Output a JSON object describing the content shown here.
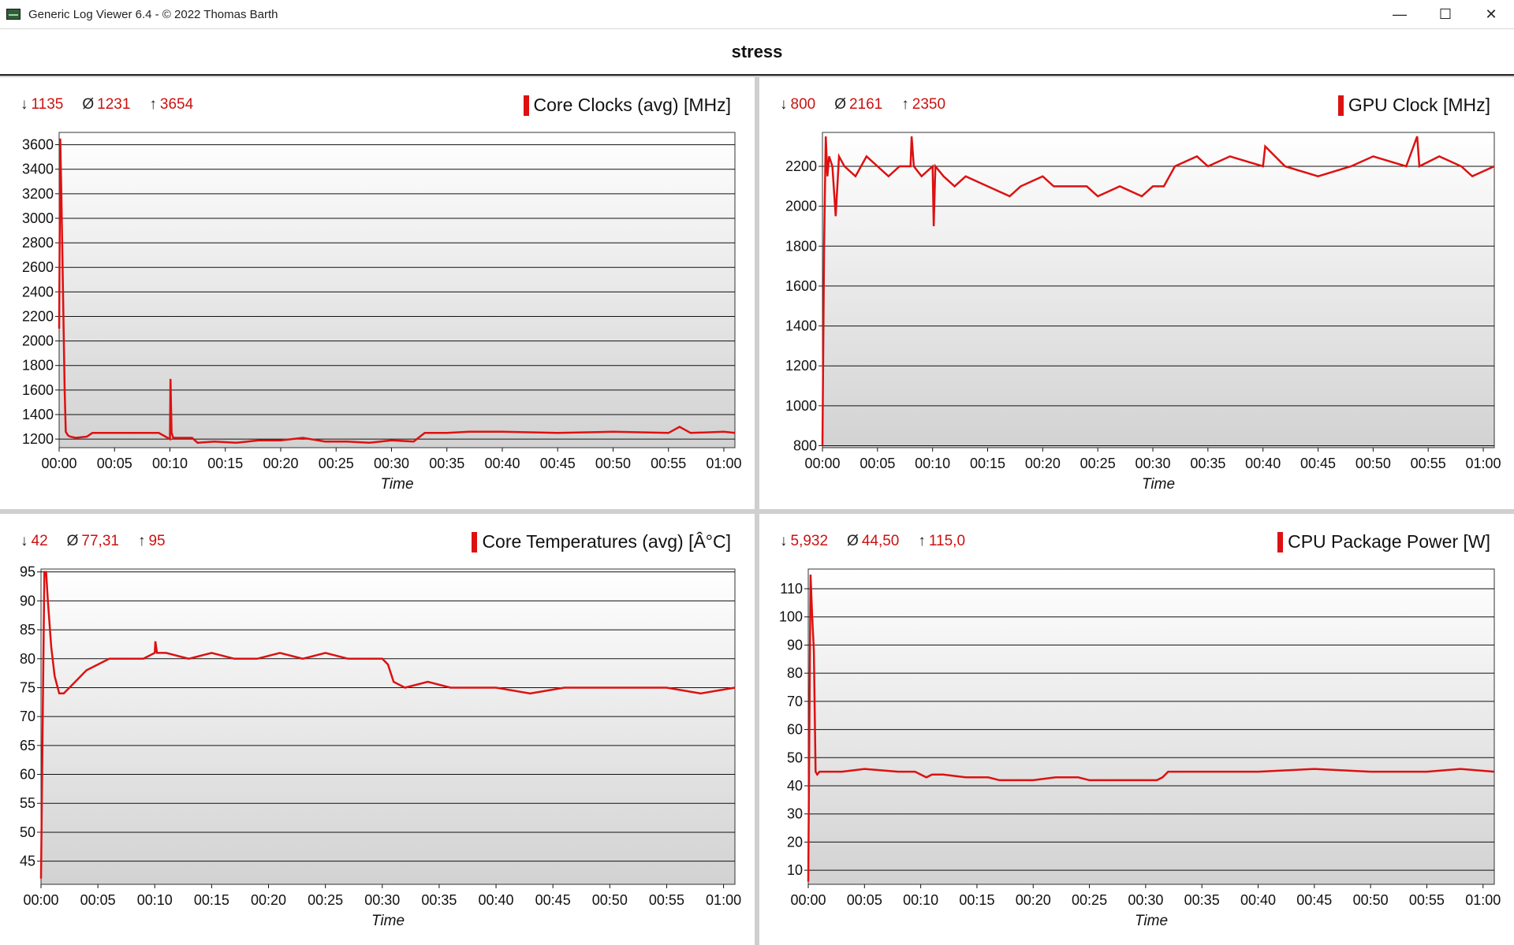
{
  "window": {
    "title": "Generic Log Viewer 6.4 - © 2022 Thomas Barth",
    "minimize": "—",
    "maximize": "☐",
    "close": "✕"
  },
  "document": {
    "title": "stress"
  },
  "colors": {
    "series": "#dd1111",
    "stat_text": "#cc1111",
    "grid": "#111111"
  },
  "chart_data": [
    {
      "type": "line",
      "title": "Core Clocks (avg) [MHz]",
      "stats": {
        "min_symbol": "↓",
        "min": "1135",
        "avg_symbol": "Ø",
        "avg": "1231",
        "max_symbol": "↑",
        "max": "3654"
      },
      "xlabel": "Time",
      "x_ticks": [
        "00:00",
        "00:05",
        "00:10",
        "00:15",
        "00:20",
        "00:25",
        "00:30",
        "00:35",
        "00:40",
        "00:45",
        "00:50",
        "00:55",
        "01:00"
      ],
      "xlim_min": [
        0,
        61
      ],
      "y_ticks": [
        1200,
        1400,
        1600,
        1800,
        2000,
        2200,
        2400,
        2600,
        2800,
        3000,
        3200,
        3400,
        3600
      ],
      "ylim": [
        1130,
        3700
      ],
      "grid": true,
      "series": [
        {
          "x": [
            0,
            0.1,
            0.2,
            0.35,
            0.5,
            0.6,
            0.8,
            1,
            1.5,
            2.5,
            3,
            5,
            7,
            9,
            10,
            10.05,
            10.15,
            10.3,
            12,
            12.5,
            14,
            16,
            18,
            20,
            22,
            24,
            26,
            28,
            30,
            32,
            33,
            35,
            37,
            40,
            45,
            50,
            55,
            56,
            57,
            60,
            61
          ],
          "y": [
            2100,
            3650,
            3200,
            2400,
            1600,
            1260,
            1230,
            1220,
            1210,
            1220,
            1250,
            1250,
            1250,
            1250,
            1200,
            1690,
            1250,
            1210,
            1210,
            1170,
            1180,
            1170,
            1190,
            1190,
            1210,
            1180,
            1180,
            1170,
            1190,
            1180,
            1250,
            1250,
            1260,
            1260,
            1250,
            1260,
            1250,
            1300,
            1250,
            1260,
            1250
          ]
        }
      ]
    },
    {
      "type": "line",
      "title": "GPU Clock [MHz]",
      "stats": {
        "min_symbol": "↓",
        "min": "800",
        "avg_symbol": "Ø",
        "avg": "2161",
        "max_symbol": "↑",
        "max": "2350"
      },
      "xlabel": "Time",
      "x_ticks": [
        "00:00",
        "00:05",
        "00:10",
        "00:15",
        "00:20",
        "00:25",
        "00:30",
        "00:35",
        "00:40",
        "00:45",
        "00:50",
        "00:55",
        "01:00"
      ],
      "xlim_min": [
        0,
        61
      ],
      "y_ticks": [
        800,
        1000,
        1200,
        1400,
        1600,
        1800,
        2000,
        2200
      ],
      "ylim": [
        790,
        2370
      ],
      "grid": true,
      "series": [
        {
          "x": [
            0,
            0.15,
            0.3,
            0.45,
            0.6,
            0.9,
            1.2,
            1.5,
            2,
            3,
            4,
            5,
            6,
            7,
            8,
            8.1,
            8.3,
            9,
            10,
            10.1,
            10.25,
            11,
            12,
            13,
            15,
            17,
            18,
            20,
            21,
            24,
            25,
            27,
            29,
            30,
            31,
            31.5,
            32,
            34,
            35,
            37,
            40,
            40.2,
            42,
            45,
            48,
            50,
            53,
            54,
            54.2,
            56,
            58,
            59,
            61
          ],
          "y": [
            800,
            1800,
            2350,
            2150,
            2250,
            2200,
            1950,
            2250,
            2200,
            2150,
            2250,
            2200,
            2150,
            2200,
            2200,
            2350,
            2200,
            2150,
            2200,
            1900,
            2200,
            2150,
            2100,
            2150,
            2100,
            2050,
            2100,
            2150,
            2100,
            2100,
            2050,
            2100,
            2050,
            2100,
            2100,
            2150,
            2200,
            2250,
            2200,
            2250,
            2200,
            2300,
            2200,
            2150,
            2200,
            2250,
            2200,
            2350,
            2200,
            2250,
            2200,
            2150,
            2200
          ]
        }
      ]
    },
    {
      "type": "line",
      "title": "Core Temperatures (avg) [Â°C]",
      "stats": {
        "min_symbol": "↓",
        "min": "42",
        "avg_symbol": "Ø",
        "avg": "77,31",
        "max_symbol": "↑",
        "max": "95"
      },
      "xlabel": "Time",
      "x_ticks": [
        "00:00",
        "00:05",
        "00:10",
        "00:15",
        "00:20",
        "00:25",
        "00:30",
        "00:35",
        "00:40",
        "00:45",
        "00:50",
        "00:55",
        "01:00"
      ],
      "xlim_min": [
        0,
        61
      ],
      "y_ticks": [
        45,
        50,
        55,
        60,
        65,
        70,
        75,
        80,
        85,
        90,
        95
      ],
      "ylim": [
        41,
        95.5
      ],
      "grid": true,
      "series": [
        {
          "x": [
            0,
            0.15,
            0.3,
            0.45,
            0.6,
            0.9,
            1.2,
            1.6,
            2,
            2.5,
            3,
            4,
            5,
            6,
            7,
            8,
            9,
            10,
            10.05,
            10.2,
            11,
            13,
            15,
            17,
            19,
            21,
            23,
            25,
            27,
            29,
            30,
            30.5,
            31,
            32,
            34,
            36,
            38,
            40,
            43,
            46,
            50,
            55,
            58,
            61
          ],
          "y": [
            42,
            70,
            95,
            95,
            90,
            82,
            77,
            74,
            74,
            75,
            76,
            78,
            79,
            80,
            80,
            80,
            80,
            81,
            83,
            81,
            81,
            80,
            81,
            80,
            80,
            81,
            80,
            81,
            80,
            80,
            80,
            79,
            76,
            75,
            76,
            75,
            75,
            75,
            74,
            75,
            75,
            75,
            74,
            75
          ]
        }
      ]
    },
    {
      "type": "line",
      "title": "CPU Package Power [W]",
      "stats": {
        "min_symbol": "↓",
        "min": "5,932",
        "avg_symbol": "Ø",
        "avg": "44,50",
        "max_symbol": "↑",
        "max": "115,0"
      },
      "xlabel": "Time",
      "x_ticks": [
        "00:00",
        "00:05",
        "00:10",
        "00:15",
        "00:20",
        "00:25",
        "00:30",
        "00:35",
        "00:40",
        "00:45",
        "00:50",
        "00:55",
        "01:00"
      ],
      "xlim_min": [
        0,
        61
      ],
      "y_ticks": [
        10,
        20,
        30,
        40,
        50,
        60,
        70,
        80,
        90,
        100,
        110
      ],
      "ylim": [
        5,
        117
      ],
      "grid": true,
      "series": [
        {
          "x": [
            0,
            0.1,
            0.2,
            0.35,
            0.5,
            0.65,
            0.8,
            1,
            1.5,
            2,
            3,
            5,
            8,
            9.5,
            10,
            10.5,
            11,
            12,
            14,
            16,
            17,
            20,
            22,
            24,
            25,
            27,
            30,
            31,
            31.5,
            32,
            35,
            40,
            45,
            50,
            55,
            58,
            61
          ],
          "y": [
            6,
            60,
            115,
            100,
            88,
            45,
            44,
            45,
            45,
            45,
            45,
            46,
            45,
            45,
            44,
            43,
            44,
            44,
            43,
            43,
            42,
            42,
            43,
            43,
            42,
            42,
            42,
            42,
            43,
            45,
            45,
            45,
            46,
            45,
            45,
            46,
            45
          ]
        }
      ]
    }
  ]
}
